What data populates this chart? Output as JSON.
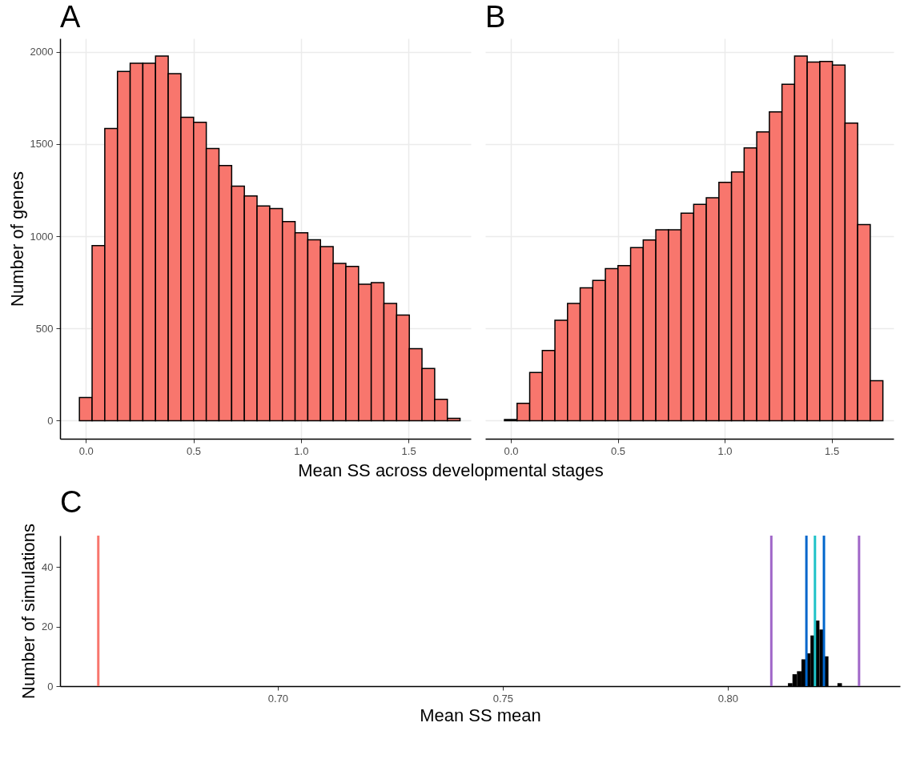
{
  "chart_data": [
    {
      "type": "histogram",
      "title": "A",
      "xlabel": "Mean SS across developmental stages",
      "ylabel": "Number of genes",
      "color": "#f8766d",
      "bins": [
        -0.03,
        0.029,
        0.088,
        0.147,
        0.206,
        0.265,
        0.324,
        0.383,
        0.442,
        0.501,
        0.56,
        0.619,
        0.678,
        0.737,
        0.796,
        0.855,
        0.914,
        0.973,
        1.032,
        1.091,
        1.15,
        1.209,
        1.268,
        1.327,
        1.386,
        1.445,
        1.504,
        1.563,
        1.622,
        1.681,
        1.74
      ],
      "values": [
        126,
        949,
        1584,
        1893,
        1938,
        1937,
        1977,
        1881,
        1644,
        1617,
        1475,
        1383,
        1271,
        1218,
        1164,
        1150,
        1079,
        1018,
        981,
        944,
        852,
        836,
        740,
        748,
        635,
        573,
        390,
        283,
        116,
        13
      ],
      "xlim": [
        -0.12,
        1.79
      ],
      "xticks": [
        {
          "value": 0,
          "label": "0.0"
        },
        0.5,
        {
          "value": 1,
          "label": "1.0"
        },
        1.5
      ],
      "ylim": [
        -98,
        2072
      ],
      "yticks": [
        0,
        500,
        1000,
        1500,
        2000
      ],
      "grid": true
    },
    {
      "type": "histogram",
      "title": "B",
      "color": "#f8766d",
      "bins": [
        -0.03,
        0.029,
        0.088,
        0.147,
        0.206,
        0.265,
        0.324,
        0.383,
        0.442,
        0.501,
        0.56,
        0.619,
        0.678,
        0.737,
        0.796,
        0.855,
        0.914,
        0.973,
        1.032,
        1.091,
        1.15,
        1.209,
        1.268,
        1.327,
        1.386,
        1.445,
        1.504,
        1.563,
        1.622,
        1.681,
        1.74
      ],
      "values": [
        6,
        94,
        261,
        380,
        544,
        635,
        720,
        760,
        824,
        840,
        938,
        979,
        1035,
        1035,
        1125,
        1172,
        1208,
        1292,
        1348,
        1479,
        1565,
        1674,
        1823,
        1977,
        1944,
        1947,
        1928,
        1613,
        1063,
        217
      ],
      "xlim": [
        -0.12,
        1.79
      ],
      "xticks": [
        {
          "value": 0,
          "label": "0.0"
        },
        0.5,
        {
          "value": 1,
          "label": "1.0"
        },
        1.5
      ],
      "ylim": [
        -98,
        2072
      ],
      "yticks": [
        0,
        500,
        1000,
        1500,
        2000
      ],
      "grid": true,
      "tick_labels": "x"
    },
    {
      "type": "histogram",
      "title": "C",
      "xlabel": "Mean SS mean",
      "ylabel": "Number of simulations",
      "color": "#000000",
      "bins": [
        0.8134,
        0.8144,
        0.8154,
        0.8164,
        0.8174,
        0.8184,
        0.8194,
        0.8204,
        0.8214,
        0.8224,
        0.8234,
        0.8244,
        0.8254
      ],
      "values": [
        1,
        4,
        5,
        9,
        11,
        17,
        22,
        19,
        10,
        0,
        0,
        1
      ],
      "xlim": [
        0.6516,
        0.8383
      ],
      "xticks": [
        {
          "value": 0.7,
          "label": "0.70"
        },
        0.75,
        {
          "value": 0.8,
          "label": "0.80"
        }
      ],
      "ylim": [
        0,
        50.5
      ],
      "yticks": [
        0,
        20,
        40
      ],
      "ref_lines": [
        {
          "axis": "x",
          "value": 0.6601,
          "color": "#f8766d"
        },
        {
          "axis": "x",
          "value": 0.8097,
          "color": "#a066c8"
        },
        {
          "axis": "x",
          "value": 0.8175,
          "color": "#0066cc"
        },
        {
          "axis": "x",
          "value": 0.8194,
          "color": "#1fc3c8"
        },
        {
          "axis": "x",
          "value": 0.8214,
          "color": "#0066cc"
        },
        {
          "axis": "x",
          "value": 0.8292,
          "color": "#a066c8"
        }
      ]
    }
  ]
}
